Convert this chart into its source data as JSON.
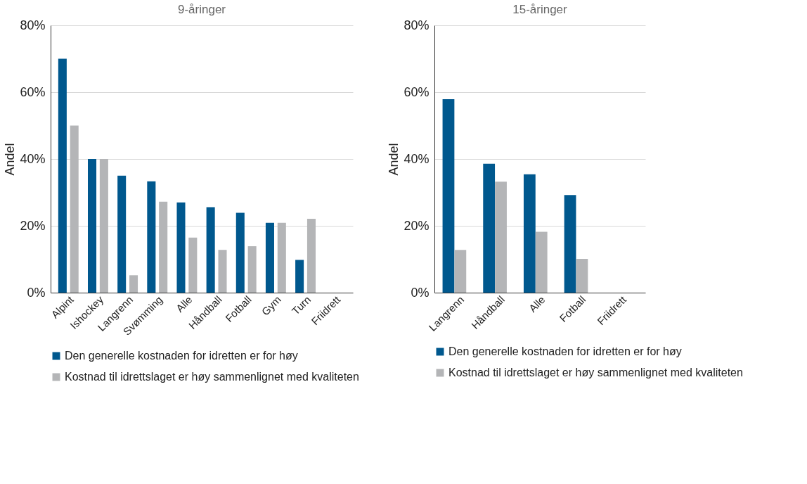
{
  "chart_data": [
    {
      "type": "bar",
      "title": "9-åringer",
      "ylabel": "Andel",
      "categories": [
        "Alpint",
        "Ishockey",
        "Langrenn",
        "Svømming",
        "Alle",
        "Håndball",
        "Fotball",
        "Gym",
        "Turn",
        "Friidrett"
      ],
      "series": [
        {
          "name": "Den generelle kostnaden for idretten er for høy",
          "color": "#00588e",
          "values": [
            70,
            40,
            35,
            33.3,
            27,
            25.6,
            23.9,
            20.9,
            9.8,
            null
          ]
        },
        {
          "name": "Kostnad til idrettslaget er høy sammenlignet med kvaliteten",
          "color": "#b4b5b7",
          "values": [
            50,
            40,
            5.2,
            27.2,
            16.5,
            12.8,
            13.9,
            20.9,
            22.1,
            null
          ]
        }
      ],
      "ylim": [
        0,
        80
      ],
      "yticks": [
        {
          "value": 0,
          "label": "0%"
        },
        {
          "value": 20,
          "label": "20%"
        },
        {
          "value": 40,
          "label": "40%"
        },
        {
          "value": 60,
          "label": "60%"
        },
        {
          "value": 80,
          "label": "80%"
        }
      ],
      "grid": "y",
      "legend": "bottom"
    },
    {
      "type": "bar",
      "title": "15-åringer",
      "ylabel": "Andel",
      "categories": [
        "Langrenn",
        "Håndball",
        "Alle",
        "Fotball",
        "Friidrett"
      ],
      "series": [
        {
          "name": "Den generelle kostnaden for idretten er for høy",
          "color": "#00588e",
          "values": [
            57.9,
            38.6,
            35.4,
            29.2,
            null
          ]
        },
        {
          "name": "Kostnad til idrettslaget er høy sammenlignet med kvaliteten",
          "color": "#b4b5b7",
          "values": [
            12.8,
            33.2,
            18.2,
            10.1,
            null
          ]
        }
      ],
      "ylim": [
        0,
        80
      ],
      "yticks": [
        {
          "value": 0,
          "label": "0%"
        },
        {
          "value": 20,
          "label": "20%"
        },
        {
          "value": 40,
          "label": "40%"
        },
        {
          "value": 60,
          "label": "60%"
        },
        {
          "value": 80,
          "label": "80%"
        }
      ],
      "grid": "y",
      "legend": "bottom"
    }
  ]
}
